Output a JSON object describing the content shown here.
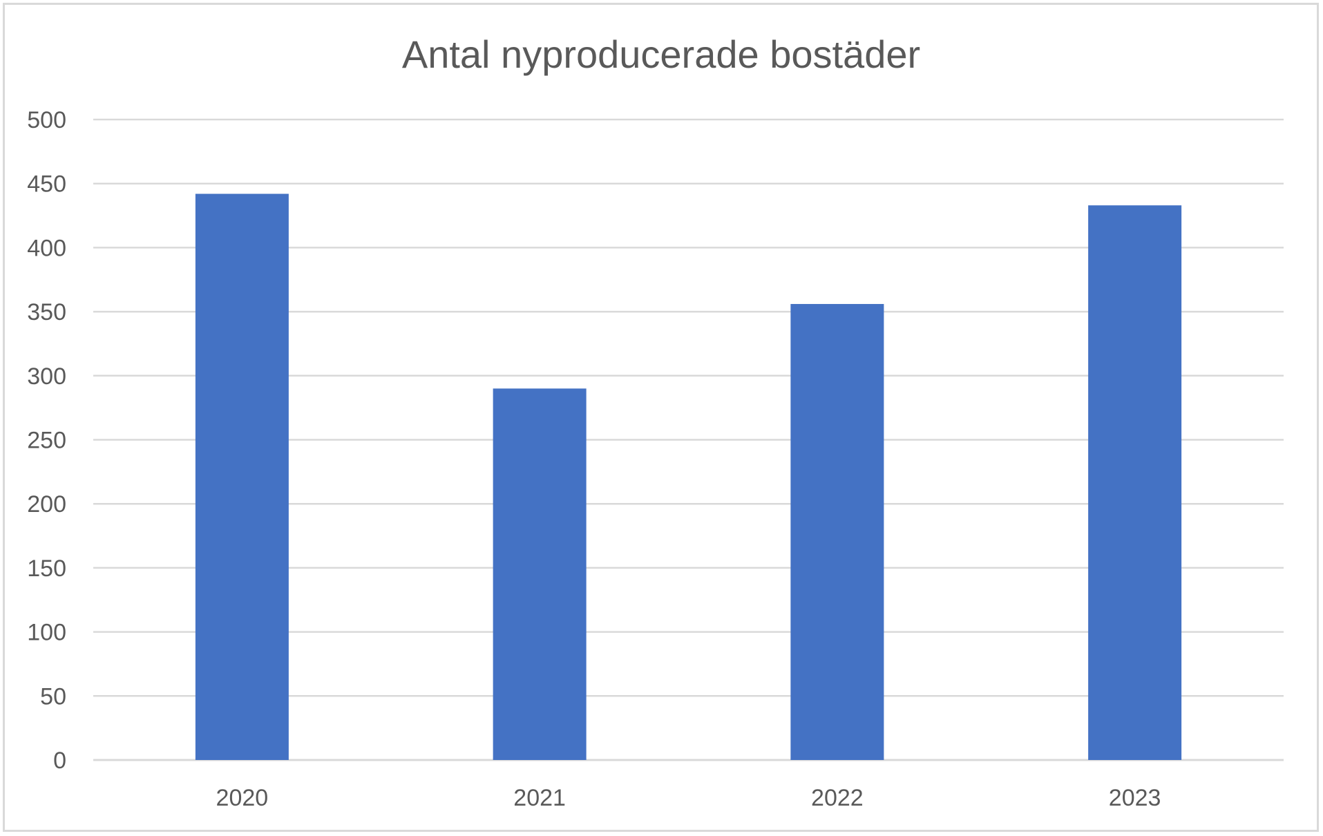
{
  "chart_data": {
    "type": "bar",
    "title": "Antal nyproducerade bostäder",
    "categories": [
      "2020",
      "2021",
      "2022",
      "2023"
    ],
    "values": [
      442,
      290,
      356,
      433
    ],
    "ylim": [
      0,
      500
    ],
    "yticks": [
      "0",
      "50",
      "100",
      "150",
      "200",
      "250",
      "300",
      "350",
      "400",
      "450",
      "500"
    ],
    "xlabel": "",
    "ylabel": "",
    "grid": true,
    "legend": "none",
    "bar_color": "#4472C4"
  }
}
